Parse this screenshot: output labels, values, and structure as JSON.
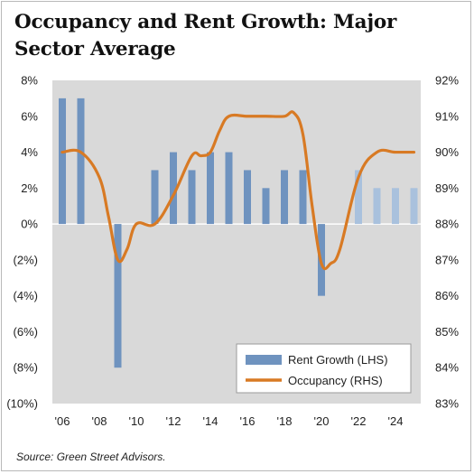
{
  "chart_data": {
    "type": "bar+line",
    "title": "Occupancy and Rent Growth: Major Sector Average",
    "source": "Source: Green Street Advisors.",
    "x": [
      2006,
      2007,
      2008,
      2009,
      2010,
      2011,
      2012,
      2013,
      2014,
      2015,
      2016,
      2017,
      2018,
      2019,
      2020,
      2021,
      2022,
      2023,
      2024,
      2025
    ],
    "x_tick_labels": [
      "'06",
      "'08",
      "'10",
      "'12",
      "'14",
      "'16",
      "'18",
      "'20",
      "'22",
      "'24"
    ],
    "x_tick_years": [
      2006,
      2008,
      2010,
      2012,
      2014,
      2016,
      2018,
      2020,
      2022,
      2024
    ],
    "series": [
      {
        "name": "Rent Growth (LHS)",
        "type": "bar",
        "axis": "left",
        "color": "#6f93bf",
        "forecast_color": "#a9c1dd",
        "forecast_from": 2022,
        "values": [
          7,
          7,
          null,
          -8,
          null,
          3,
          4,
          3,
          4,
          4,
          3,
          2,
          3,
          3,
          -4,
          null,
          3,
          2,
          2,
          2
        ]
      },
      {
        "name": "Occupancy (RHS)",
        "type": "line",
        "axis": "right",
        "color": "#d87a24",
        "x": [
          2006,
          2007,
          2008,
          2008.5,
          2009,
          2009.5,
          2010,
          2011,
          2012,
          2013,
          2013.5,
          2014,
          2014.5,
          2015,
          2016,
          2017,
          2018,
          2018.5,
          2019,
          2019.5,
          2020,
          2020.5,
          2021,
          2022,
          2023,
          2024,
          2025
        ],
        "values": [
          90,
          90,
          89.3,
          88.2,
          87,
          87.3,
          88,
          88,
          88.8,
          89.9,
          89.9,
          90,
          90.6,
          91,
          91,
          91,
          91,
          91.1,
          90.5,
          88.5,
          86.9,
          86.9,
          87.3,
          89.3,
          90,
          90,
          90
        ]
      }
    ],
    "y_left": {
      "min": -10,
      "max": 8,
      "step": 2,
      "tick_labels": [
        "8%",
        "6%",
        "4%",
        "2%",
        "0%",
        "(2%)",
        "(4%)",
        "(6%)",
        "(8%)",
        "(10%)"
      ]
    },
    "y_right": {
      "min": 83,
      "max": 92,
      "step": 1,
      "tick_labels": [
        "92%",
        "91%",
        "90%",
        "89%",
        "88%",
        "87%",
        "86%",
        "85%",
        "84%",
        "83%"
      ]
    },
    "legend_position": "bottom-right",
    "grid": false,
    "colors": {
      "plot_background": "#d9d9d9",
      "zero_line": "#ffffff"
    }
  }
}
